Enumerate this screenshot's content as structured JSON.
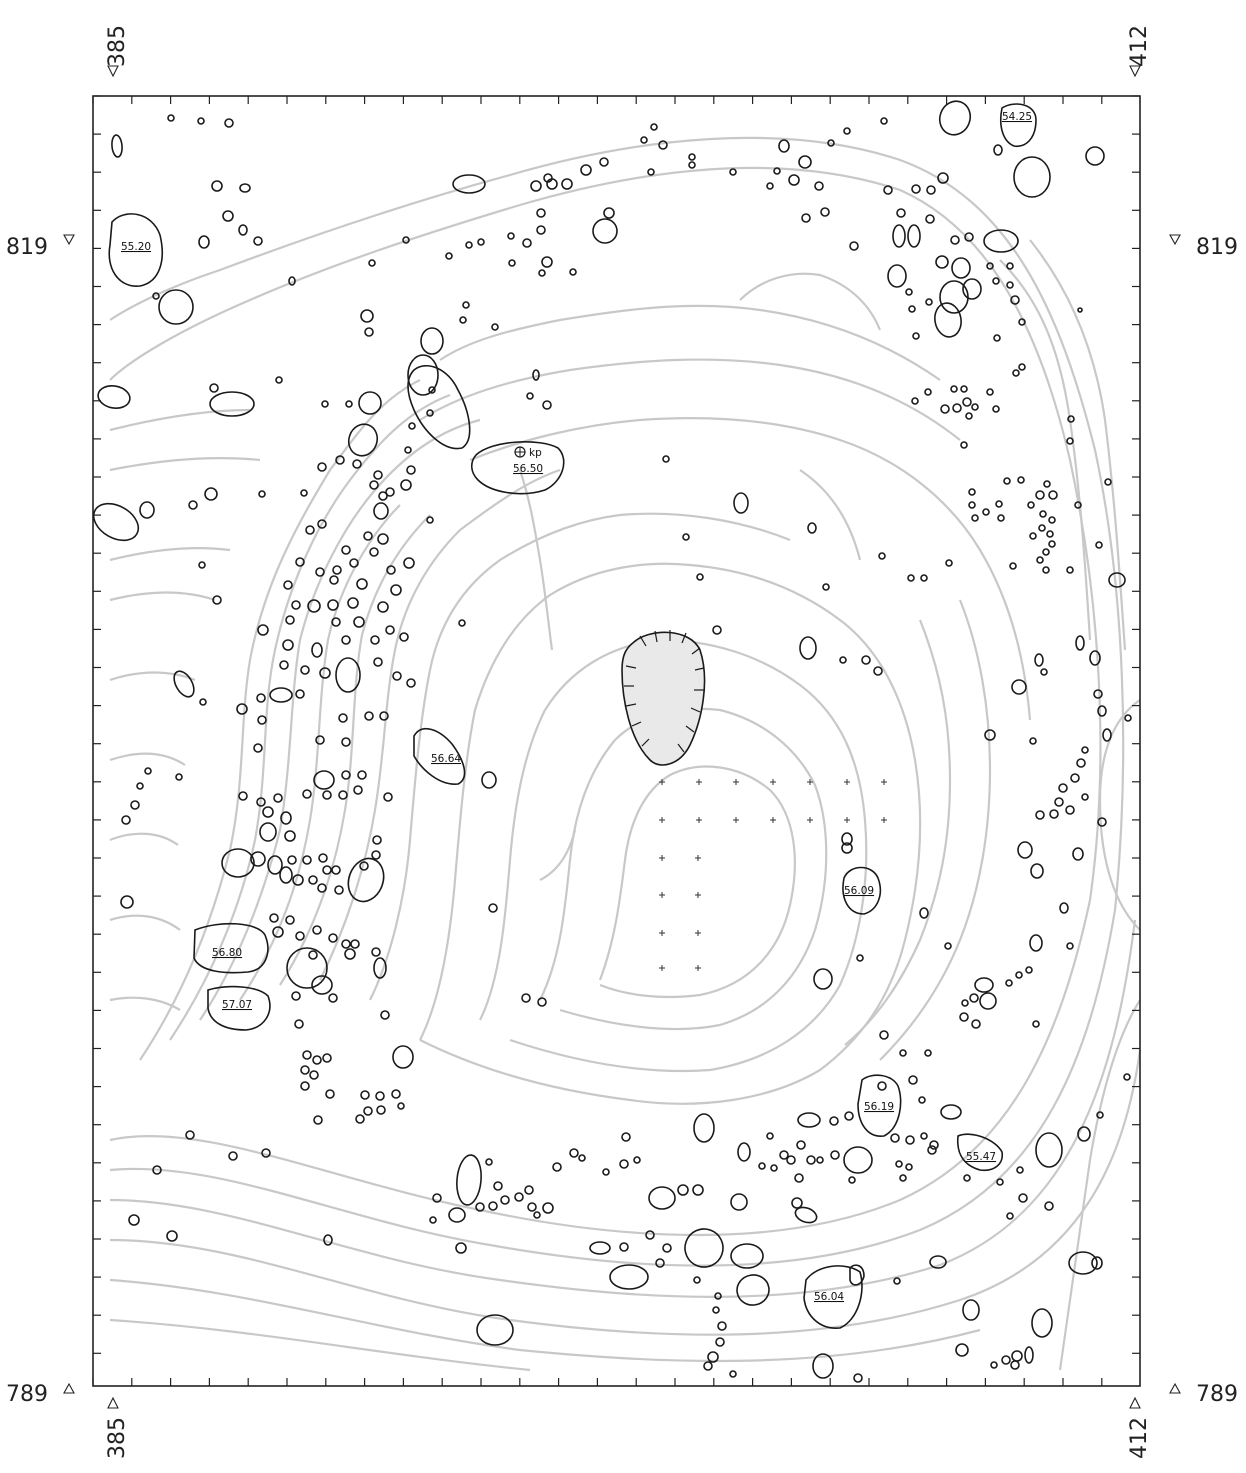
{
  "map": {
    "coords": {
      "top_left_x": "385",
      "top_right_x": "412",
      "bottom_left_x": "385",
      "bottom_right_x": "412",
      "left_upper_y": "819",
      "right_upper_y": "819",
      "left_lower_y": "789",
      "right_lower_y": "789"
    },
    "elevations": [
      "55.20",
      "54.25",
      "56.50",
      "56.64",
      "56.09",
      "56.80",
      "57.07",
      "56.19",
      "55.47",
      "56.04"
    ],
    "survey_point_label": "kp",
    "colors": {
      "frame": "#222222",
      "stones": "#1a1a1a",
      "contours": "#c8c8c8"
    }
  }
}
